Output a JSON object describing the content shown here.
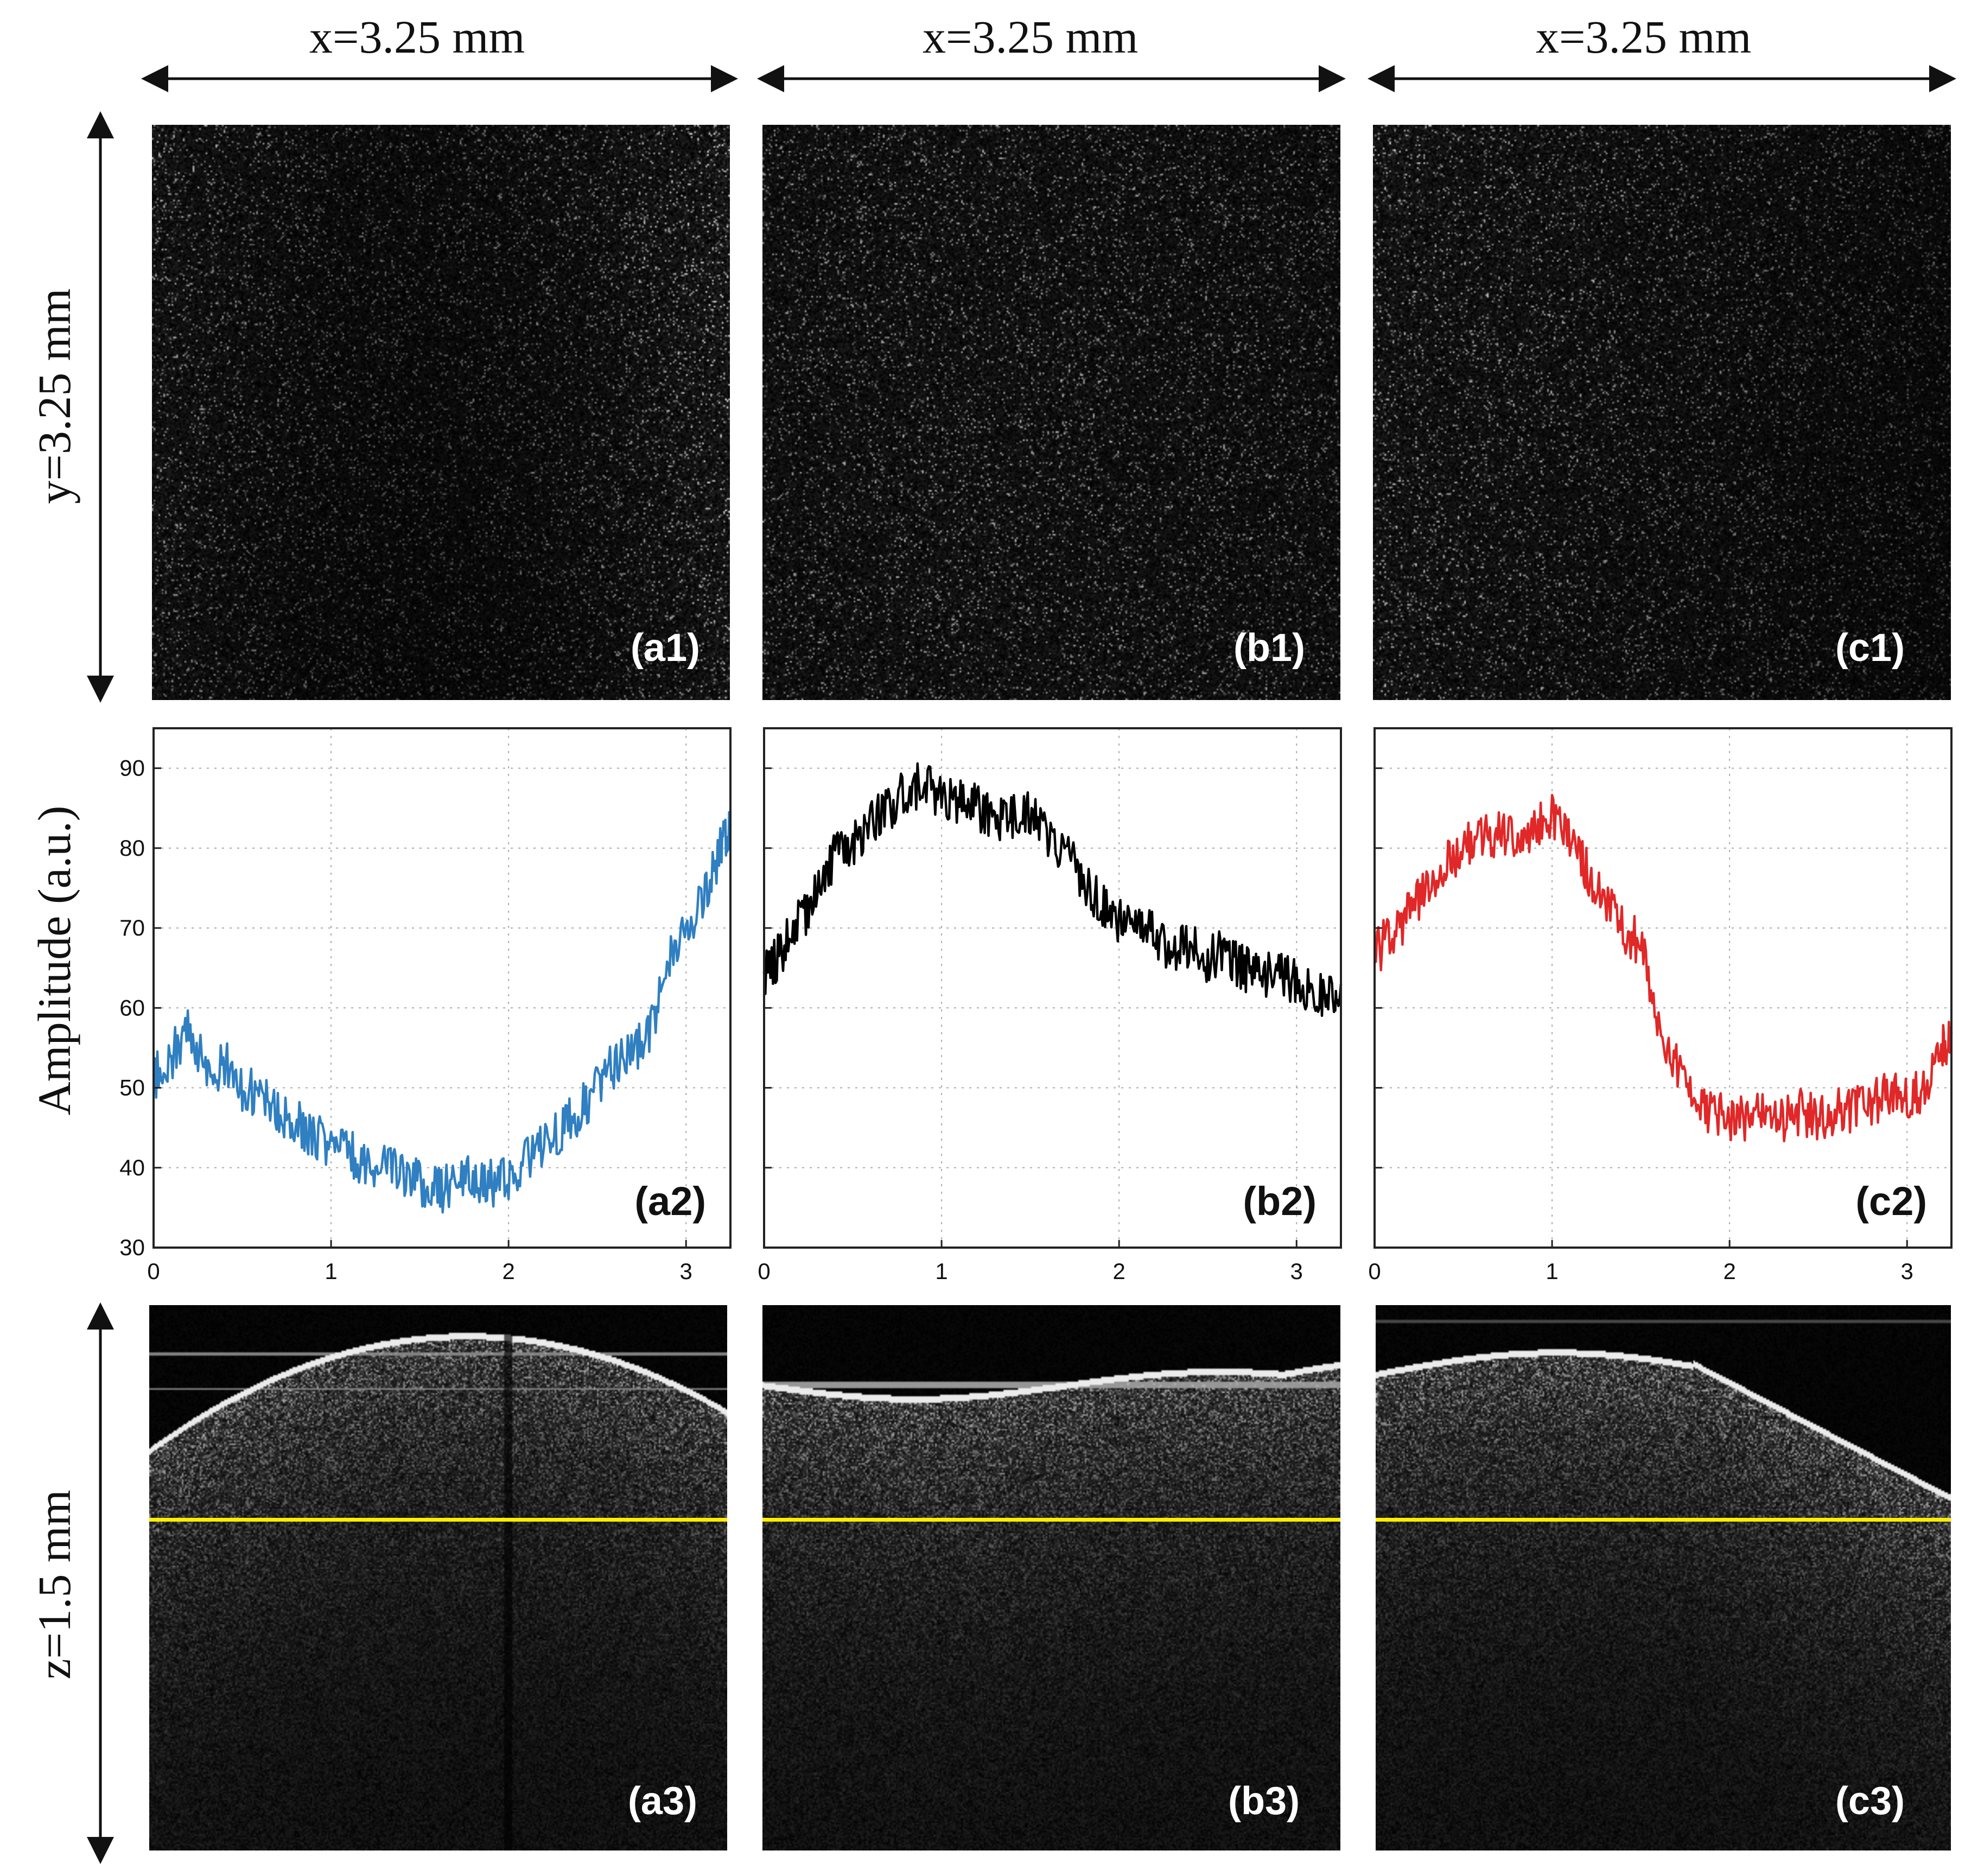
{
  "header": {
    "x_dims": [
      "x=3.25 mm",
      "x=3.25 mm",
      "x=3.25 mm"
    ],
    "y_dim": "y=3.25 mm",
    "z_dim": "z=1.5 mm",
    "amplitude_label": "Amplitude (a.u.)"
  },
  "row1": {
    "labels": [
      "(a1)",
      "(b1)",
      "(c1)"
    ]
  },
  "row3": {
    "labels": [
      "(a3)",
      "(b3)",
      "(c3)"
    ],
    "line_color": "#ffee00"
  },
  "chart_data": [
    {
      "type": "line",
      "label": "(a2)",
      "color": "#2f7fc1",
      "ylabel": "Amplitude (a.u.)",
      "xlim": [
        0,
        3.25
      ],
      "ylim": [
        30,
        95
      ],
      "xticks": [
        0,
        1,
        2,
        3
      ],
      "yticks": [
        30,
        40,
        50,
        60,
        70,
        80,
        90
      ],
      "grid": true,
      "x": [
        0,
        0.1,
        0.2,
        0.3,
        0.4,
        0.5,
        0.6,
        0.7,
        0.8,
        0.9,
        1.0,
        1.1,
        1.2,
        1.3,
        1.4,
        1.5,
        1.6,
        1.7,
        1.8,
        1.9,
        2.0,
        2.1,
        2.2,
        2.3,
        2.4,
        2.5,
        2.6,
        2.7,
        2.8,
        2.9,
        3.0,
        3.1,
        3.2,
        3.25
      ],
      "y": [
        51,
        54,
        57,
        52,
        53,
        50,
        49,
        47,
        46,
        44,
        43,
        42,
        40,
        40,
        39,
        38,
        37,
        38,
        39,
        38,
        39,
        41,
        43,
        45,
        47,
        50,
        53,
        54,
        57,
        66,
        70,
        74,
        80,
        83
      ]
    },
    {
      "type": "line",
      "label": "(b2)",
      "color": "#000000",
      "xlim": [
        0,
        3.25
      ],
      "ylim": [
        30,
        95
      ],
      "xticks": [
        0,
        1,
        2,
        3
      ],
      "yticks": [
        30,
        40,
        50,
        60,
        70,
        80,
        90
      ],
      "grid": true,
      "x": [
        0,
        0.1,
        0.2,
        0.3,
        0.4,
        0.5,
        0.6,
        0.7,
        0.8,
        0.9,
        1.0,
        1.1,
        1.2,
        1.3,
        1.4,
        1.5,
        1.6,
        1.7,
        1.8,
        1.9,
        2.0,
        2.1,
        2.2,
        2.3,
        2.4,
        2.5,
        2.6,
        2.7,
        2.8,
        2.9,
        3.0,
        3.1,
        3.2,
        3.25
      ],
      "y": [
        64,
        67,
        71,
        74,
        79,
        80,
        83,
        85,
        87,
        88,
        86,
        86,
        85,
        83,
        84,
        84,
        82,
        79,
        76,
        73,
        71,
        70,
        69,
        67,
        68,
        66,
        67,
        65,
        64,
        65,
        63,
        62,
        62,
        63
      ]
    },
    {
      "type": "line",
      "label": "(c2)",
      "color": "#e02828",
      "xlim": [
        0,
        3.25
      ],
      "ylim": [
        30,
        95
      ],
      "xticks": [
        0,
        1,
        2,
        3
      ],
      "yticks": [
        30,
        40,
        50,
        60,
        70,
        80,
        90
      ],
      "grid": true,
      "x": [
        0,
        0.1,
        0.2,
        0.3,
        0.4,
        0.5,
        0.6,
        0.7,
        0.8,
        0.9,
        1.0,
        1.1,
        1.2,
        1.3,
        1.4,
        1.5,
        1.6,
        1.7,
        1.8,
        1.9,
        2.0,
        2.1,
        2.2,
        2.3,
        2.4,
        2.5,
        2.6,
        2.7,
        2.8,
        2.9,
        3.0,
        3.1,
        3.2,
        3.25
      ],
      "y": [
        67,
        69,
        72,
        75,
        78,
        80,
        81,
        82,
        81,
        82,
        84,
        82,
        77,
        73,
        70,
        68,
        58,
        53,
        48,
        47,
        46,
        46,
        47,
        46,
        47,
        46,
        47,
        47,
        48,
        49,
        49,
        50,
        55,
        57
      ]
    }
  ]
}
